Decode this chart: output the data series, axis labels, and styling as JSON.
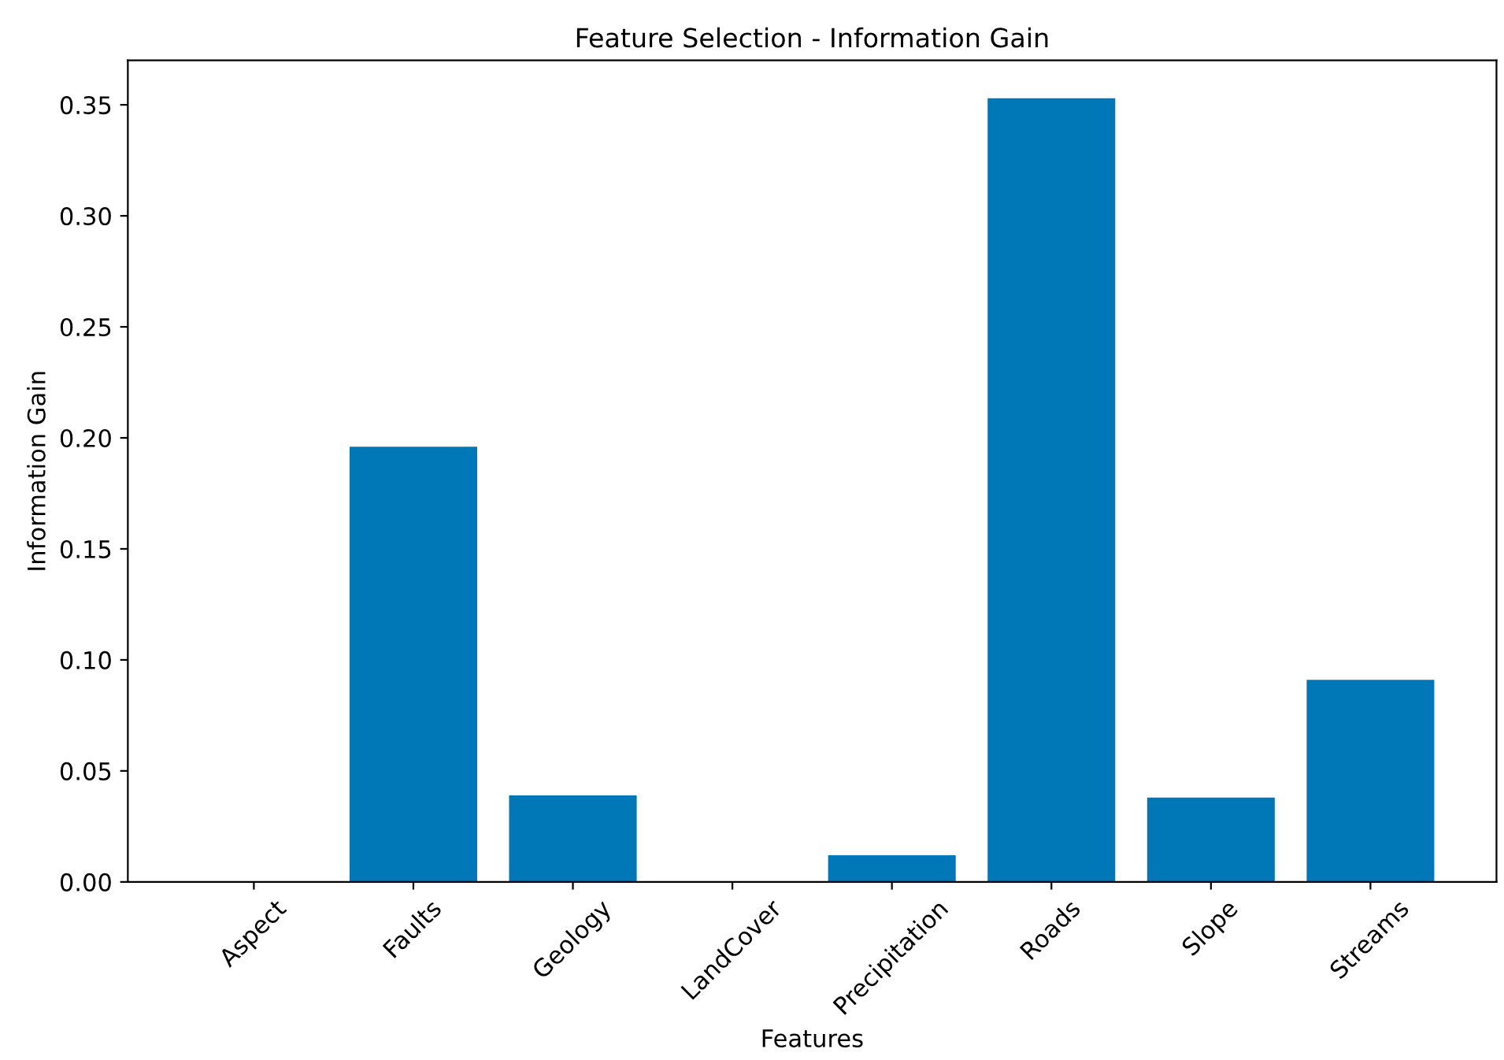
{
  "chart_data": {
    "type": "bar",
    "title": "Feature Selection - Information Gain",
    "xlabel": "Features",
    "ylabel": "Information Gain",
    "categories": [
      "Aspect",
      "Faults",
      "Geology",
      "LandCover",
      "Precipitation",
      "Roads",
      "Slope",
      "Streams"
    ],
    "values": [
      0,
      0.196,
      0.039,
      0,
      0.012,
      0.353,
      0.038,
      0.091
    ],
    "color": "#0077b6",
    "ylim": [
      0,
      0.37
    ],
    "yticks": [
      {
        "value": 0,
        "label": "0.00"
      },
      {
        "value": 0.05,
        "label": "0.05"
      },
      {
        "value": 0.1,
        "label": "0.10"
      },
      {
        "value": 0.15,
        "label": "0.15"
      },
      {
        "value": 0.2,
        "label": "0.20"
      },
      {
        "value": 0.25,
        "label": "0.25"
      },
      {
        "value": 0.3,
        "label": "0.30"
      },
      {
        "value": 0.35,
        "label": "0.35"
      }
    ],
    "grid": false
  }
}
